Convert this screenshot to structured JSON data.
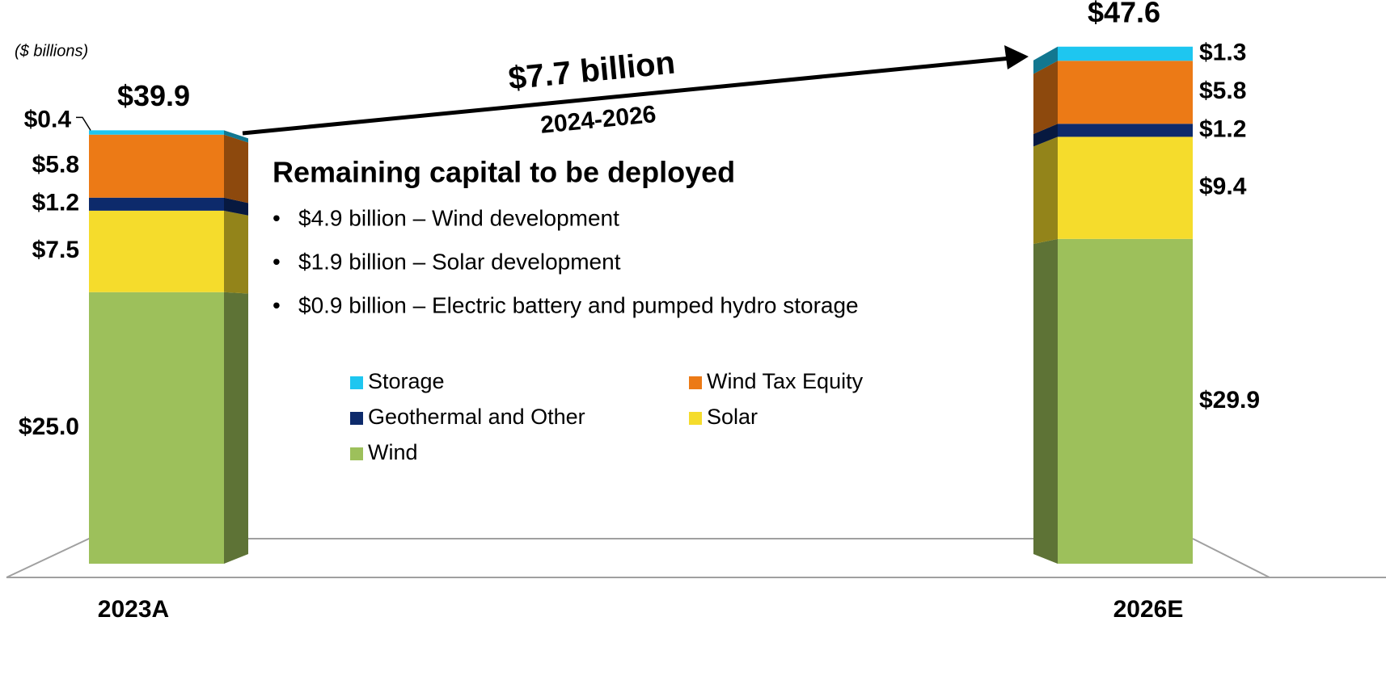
{
  "chart_data": {
    "type": "stacked_bar",
    "unit_note": "($ billions)",
    "categories": [
      "2023A",
      "2026E"
    ],
    "series": [
      {
        "name": "Wind",
        "color": "#9dc05b",
        "values": [
          25.0,
          29.9
        ],
        "value_labels": [
          "$25.0",
          "$29.9"
        ]
      },
      {
        "name": "Solar",
        "color": "#f5dc2c",
        "values": [
          7.5,
          9.4
        ],
        "value_labels": [
          "$7.5",
          "$9.4"
        ]
      },
      {
        "name": "Geothermal and Other",
        "color": "#0d2a6b",
        "values": [
          1.2,
          1.2
        ],
        "value_labels": [
          "$1.2",
          "$1.2"
        ]
      },
      {
        "name": "Wind Tax Equity",
        "color": "#ec7a16",
        "values": [
          5.8,
          5.8
        ],
        "value_labels": [
          "$5.8",
          "$5.8"
        ]
      },
      {
        "name": "Storage",
        "color": "#1ec6f0",
        "values": [
          0.4,
          1.3
        ],
        "value_labels": [
          "$0.4",
          "$1.3"
        ]
      }
    ],
    "totals": [
      39.9,
      47.6
    ],
    "total_labels": [
      "$39.9",
      "$47.6"
    ],
    "ylim": [
      0,
      50
    ],
    "annotation": {
      "amount": "$7.7 billion",
      "period": "2024-2026"
    },
    "textbox": {
      "title": "Remaining capital to be deployed",
      "bullets": [
        "$4.9 billion – Wind development",
        "$1.9 billion – Solar development",
        "$0.9 billion – Electric battery and pumped hydro storage"
      ]
    }
  }
}
